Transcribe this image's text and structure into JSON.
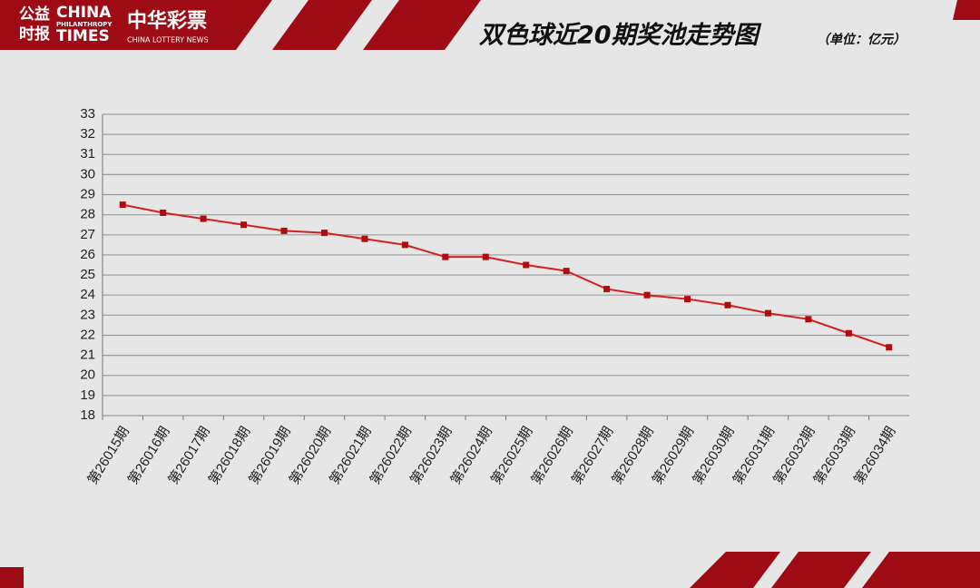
{
  "header": {
    "logo_cn_top": "公益",
    "logo_cn_bottom": "时报",
    "logo_en_top": "CHINA",
    "logo_en_mid": "PHILANTHROPY",
    "logo_en_bottom": "TIMES",
    "lottery_cn": "中华彩票",
    "lottery_en": "CHINA LOTTERY NEWS"
  },
  "chart_data": {
    "type": "line",
    "title": "双色球近20期奖池走势图",
    "subtitle": "（单位：亿元）",
    "categories": [
      "第26015期",
      "第26016期",
      "第26017期",
      "第26018期",
      "第26019期",
      "第26020期",
      "第26021期",
      "第26022期",
      "第26023期",
      "第26024期",
      "第26025期",
      "第26026期",
      "第26027期",
      "第26028期",
      "第26029期",
      "第26030期",
      "第26031期",
      "第26032期",
      "第26033期",
      "第26034期"
    ],
    "values": [
      28.5,
      28.1,
      27.8,
      27.5,
      27.2,
      27.1,
      26.8,
      26.5,
      25.9,
      25.9,
      25.5,
      25.2,
      24.3,
      24.0,
      23.8,
      23.5,
      23.1,
      22.8,
      22.1,
      21.4
    ],
    "color": "#d42020",
    "marker_color": "#b00c10",
    "ylim": [
      18,
      33
    ],
    "yticks": [
      18,
      19,
      20,
      21,
      22,
      23,
      24,
      25,
      26,
      27,
      28,
      29,
      30,
      31,
      32,
      33
    ],
    "grid": true
  }
}
